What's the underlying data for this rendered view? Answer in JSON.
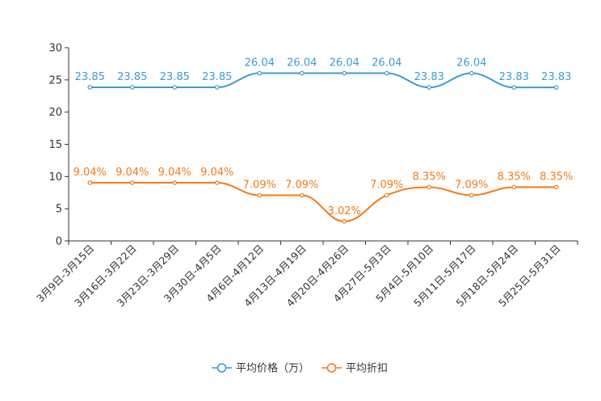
{
  "chart_data": {
    "type": "line",
    "title": "",
    "xlabel": "",
    "ylabel": "",
    "ylim": [
      0,
      30
    ],
    "yticks": [
      "0",
      "5",
      "10",
      "15",
      "20",
      "25",
      "30"
    ],
    "categories": [
      "3月9日-3月15日",
      "3月16日-3月22日",
      "3月23日-3月29日",
      "3月30日-4月5日",
      "4月6日-4月12日",
      "4月13日-4月19日",
      "4月20日-4月26日",
      "4月27日-5月3日",
      "5月4日-5月10日",
      "5月11日-5月17日",
      "5月18日-5月24日",
      "5月25日-5月31日"
    ],
    "series": [
      {
        "name": "平均价格（万）",
        "color": "#3e9bcd",
        "values": [
          23.85,
          23.85,
          23.85,
          23.85,
          26.04,
          26.04,
          26.04,
          26.04,
          23.83,
          26.04,
          23.83,
          23.83
        ],
        "labels": [
          "23.85",
          "23.85",
          "23.85",
          "23.85",
          "26.04",
          "26.04",
          "26.04",
          "26.04",
          "23.83",
          "26.04",
          "23.83",
          "23.83"
        ]
      },
      {
        "name": "平均折扣",
        "color": "#f07a1a",
        "values": [
          9.04,
          9.04,
          9.04,
          9.04,
          7.09,
          7.09,
          3.02,
          7.09,
          8.35,
          7.09,
          8.35,
          8.35
        ],
        "labels": [
          "9.04%",
          "9.04%",
          "9.04%",
          "9.04%",
          "7.09%",
          "7.09%",
          "3.02%",
          "7.09%",
          "8.35%",
          "7.09%",
          "8.35%",
          "8.35%"
        ]
      }
    ],
    "legend": "bottom-center",
    "grid": false
  }
}
